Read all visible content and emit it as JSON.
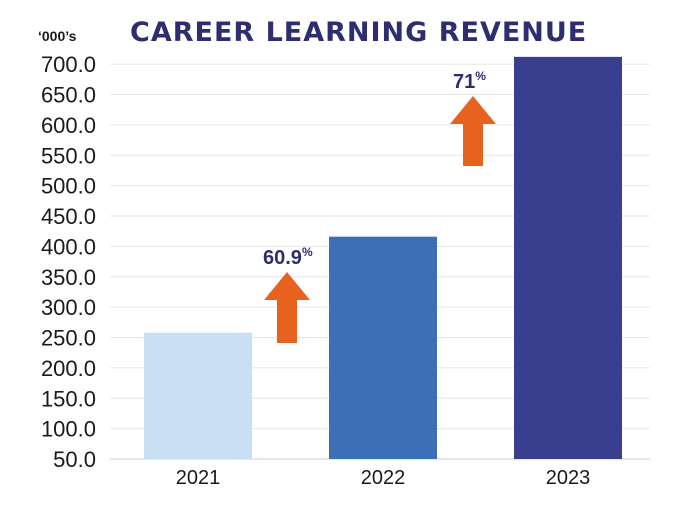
{
  "chart_data": {
    "type": "bar",
    "title": "CAREER LEARNING REVENUE",
    "units_label": "‘000’s",
    "categories": [
      "2021",
      "2022",
      "2023"
    ],
    "values": [
      258,
      416,
      712
    ],
    "ylim": [
      50,
      720
    ],
    "yticks": [
      "50.0",
      "100.0",
      "150.0",
      "200.0",
      "250.0",
      "300.0",
      "350.0",
      "400.0",
      "450.0",
      "500.0",
      "550.0",
      "600.0",
      "650.0",
      "700.0"
    ],
    "colors": [
      "#c9e0f4",
      "#3b6fb6",
      "#3a3e8f"
    ],
    "grid": true,
    "annotations": [
      {
        "text": "60.9",
        "suffix": "%",
        "between": [
          "2021",
          "2022"
        ],
        "icon": "up-arrow-icon",
        "color": "#e8621f"
      },
      {
        "text": "71",
        "suffix": "%",
        "between": [
          "2022",
          "2023"
        ],
        "icon": "up-arrow-icon",
        "color": "#e8621f"
      }
    ]
  }
}
